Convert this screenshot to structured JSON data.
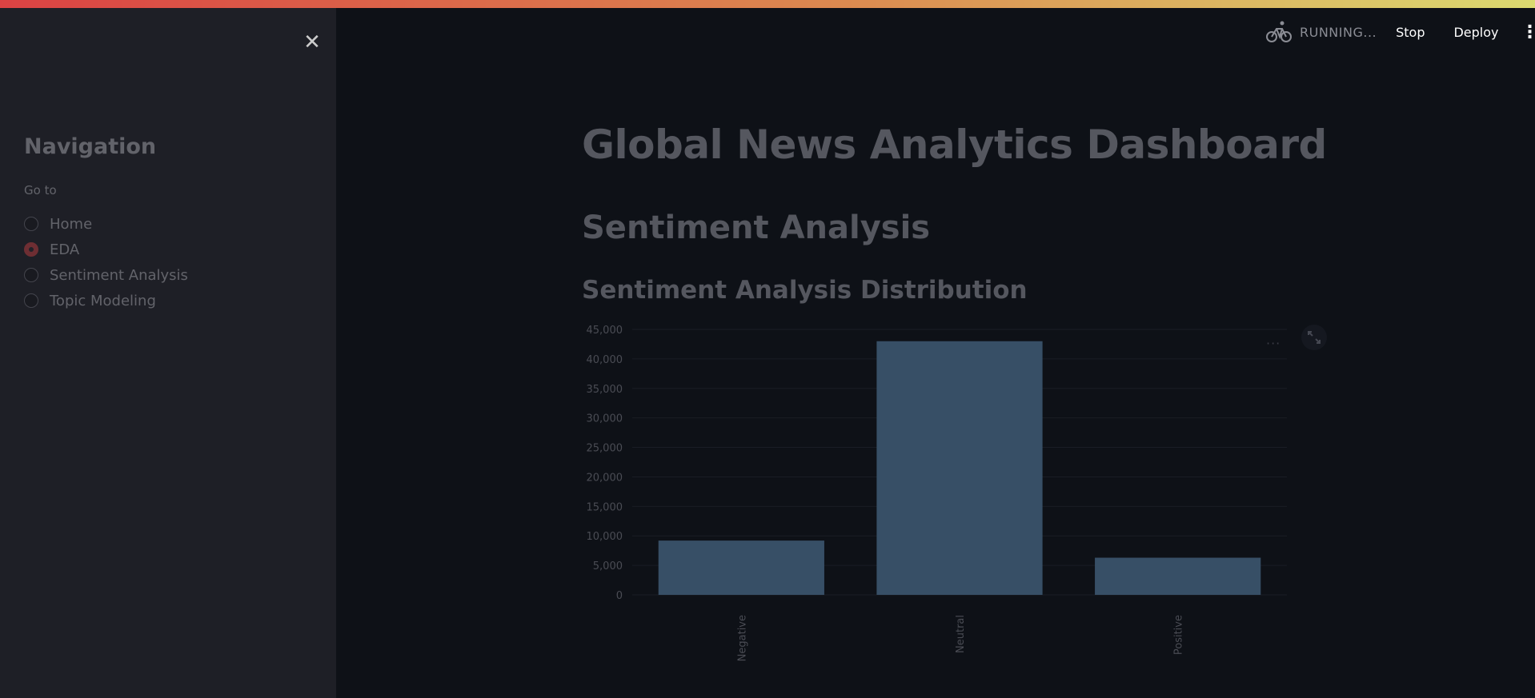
{
  "sidebar": {
    "nav_title": "Navigation",
    "goto_label": "Go to",
    "items": [
      {
        "label": "Home",
        "selected": false
      },
      {
        "label": "EDA",
        "selected": true
      },
      {
        "label": "Sentiment Analysis",
        "selected": false
      },
      {
        "label": "Topic Modeling",
        "selected": false
      }
    ]
  },
  "header": {
    "status": "RUNNING...",
    "stop_label": "Stop",
    "deploy_label": "Deploy"
  },
  "main": {
    "title": "Global News Analytics Dashboard",
    "section": "Sentiment Analysis",
    "subheader": "Sentiment Analysis Distribution"
  },
  "chart_data": {
    "type": "bar",
    "categories": [
      "Negative",
      "Neutral",
      "Positive"
    ],
    "values": [
      9200,
      43000,
      6300
    ],
    "yticks": [
      0,
      5000,
      10000,
      15000,
      20000,
      25000,
      30000,
      35000,
      40000,
      45000
    ],
    "ytick_labels": [
      "0",
      "5,000",
      "10,000",
      "15,000",
      "20,000",
      "25,000",
      "30,000",
      "35,000",
      "40,000",
      "45,000"
    ],
    "ylim": [
      0,
      45000
    ],
    "grid": true,
    "bar_color": "#374f66"
  },
  "colors": {
    "background": "#0e1117",
    "sidebar": "#262730",
    "accent": "#ff4b4b"
  }
}
